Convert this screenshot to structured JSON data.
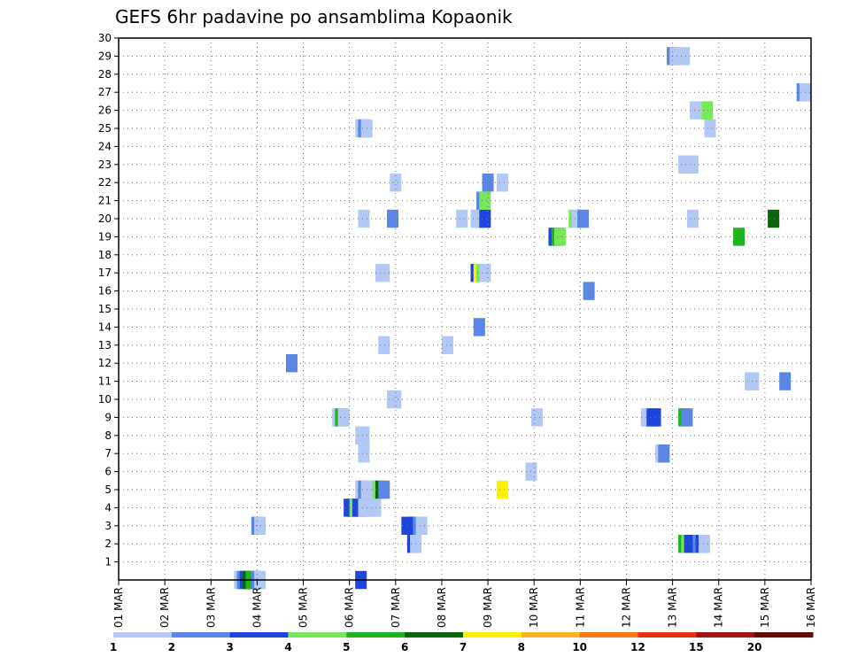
{
  "chart_data": {
    "type": "heatmap",
    "title": "GEFS 6hr padavine po ansamblima Kopaonik",
    "xlabel": "",
    "ylabel": "",
    "x_tick_labels": [
      "01 MAR",
      "02 MAR",
      "03 MAR",
      "04 MAR",
      "05 MAR",
      "06 MAR",
      "07 MAR",
      "08 MAR",
      "09 MAR",
      "10 MAR",
      "11 MAR",
      "12 MAR",
      "13 MAR",
      "14 MAR",
      "15 MAR",
      "16 MAR"
    ],
    "y_tick_labels": [
      "1",
      "2",
      "3",
      "4",
      "5",
      "6",
      "7",
      "8",
      "9",
      "10",
      "11",
      "12",
      "13",
      "14",
      "15",
      "16",
      "17",
      "18",
      "19",
      "20",
      "21",
      "22",
      "23",
      "24",
      "25",
      "26",
      "27",
      "28",
      "29",
      "30"
    ],
    "xlim_days": [
      1,
      16
    ],
    "ylim_members": [
      0,
      30
    ],
    "step_hours": 6,
    "grid": true,
    "colorbar": {
      "levels": [
        1,
        2,
        3,
        4,
        5,
        6,
        7,
        8,
        10,
        12,
        15,
        20
      ],
      "colors": [
        "#b4c8f5",
        "#5a87e6",
        "#1e46dc",
        "#78e65a",
        "#1eb41e",
        "#0a640a",
        "#fff000",
        "#ffb428",
        "#fa7814",
        "#e63214",
        "#a01414",
        "#640a0a"
      ]
    },
    "cells": [
      [
        0,
        10.5,
        1
      ],
      [
        0,
        10.75,
        2
      ],
      [
        0,
        11.0,
        3
      ],
      [
        0,
        11.25,
        6
      ],
      [
        0,
        11.5,
        5
      ],
      [
        0,
        11.75,
        5
      ],
      [
        0,
        12.0,
        2
      ],
      [
        0,
        12.25,
        1
      ],
      [
        0,
        21.0,
        3
      ],
      [
        2,
        25.5,
        3
      ],
      [
        2,
        25.75,
        1
      ],
      [
        2,
        49.0,
        5
      ],
      [
        2,
        49.25,
        4
      ],
      [
        2,
        49.5,
        3
      ],
      [
        2,
        50.25,
        2
      ],
      [
        2,
        50.5,
        3
      ],
      [
        2,
        50.75,
        1
      ],
      [
        3,
        25.0,
        3
      ],
      [
        3,
        25.5,
        3
      ],
      [
        3,
        26.0,
        2
      ],
      [
        3,
        26.25,
        1
      ],
      [
        3,
        12.0,
        2
      ],
      [
        3,
        12.25,
        1
      ],
      [
        4,
        20.0,
        3
      ],
      [
        4,
        20.25,
        3
      ],
      [
        4,
        20.5,
        4
      ],
      [
        4,
        20.75,
        3
      ],
      [
        4,
        21.0,
        3
      ],
      [
        4,
        21.25,
        1
      ],
      [
        4,
        21.5,
        1
      ],
      [
        4,
        21.75,
        1
      ],
      [
        4,
        22.0,
        1
      ],
      [
        4,
        22.25,
        1
      ],
      [
        5,
        21.75,
        1
      ],
      [
        5,
        21.0,
        1
      ],
      [
        5,
        21.25,
        2
      ],
      [
        5,
        21.5,
        1
      ],
      [
        5,
        22.0,
        1
      ],
      [
        5,
        22.25,
        1
      ],
      [
        5,
        22.5,
        4
      ],
      [
        5,
        22.75,
        6
      ],
      [
        5,
        23.0,
        2
      ],
      [
        5,
        33.25,
        7
      ],
      [
        6,
        35.75,
        1
      ],
      [
        7,
        21.25,
        1
      ],
      [
        7,
        47.0,
        1
      ],
      [
        7,
        47.25,
        2
      ],
      [
        8,
        21.0,
        1
      ],
      [
        8,
        21.25,
        1
      ],
      [
        9,
        19.0,
        1
      ],
      [
        9,
        19.25,
        5
      ],
      [
        9,
        19.5,
        1
      ],
      [
        9,
        36.25,
        1
      ],
      [
        9,
        45.75,
        1
      ],
      [
        9,
        46.0,
        1
      ],
      [
        9,
        46.25,
        3
      ],
      [
        9,
        46.5,
        3
      ],
      [
        9,
        49.0,
        5
      ],
      [
        9,
        49.25,
        2
      ],
      [
        10,
        23.75,
        1
      ],
      [
        10,
        24.0,
        1
      ],
      [
        11,
        54.75,
        1
      ],
      [
        11,
        55.0,
        1
      ],
      [
        11,
        57.75,
        2
      ],
      [
        12,
        15.0,
        2
      ],
      [
        13,
        23.0,
        1
      ],
      [
        13,
        28.5,
        1
      ],
      [
        14,
        31.25,
        2
      ],
      [
        16,
        40.75,
        2
      ],
      [
        17,
        22.75,
        1
      ],
      [
        17,
        23.0,
        1
      ],
      [
        17,
        31.0,
        3
      ],
      [
        17,
        31.25,
        7
      ],
      [
        17,
        31.5,
        4
      ],
      [
        17,
        31.75,
        1
      ],
      [
        19,
        37.75,
        3
      ],
      [
        19,
        38.0,
        5
      ],
      [
        19,
        38.25,
        4
      ],
      [
        19,
        53.75,
        5
      ],
      [
        20,
        21.25,
        1
      ],
      [
        20,
        23.75,
        2
      ],
      [
        20,
        29.75,
        1
      ],
      [
        20,
        31.0,
        1
      ],
      [
        20,
        31.25,
        1
      ],
      [
        20,
        31.5,
        1
      ],
      [
        20,
        31.75,
        3
      ],
      [
        20,
        39.5,
        4
      ],
      [
        20,
        39.75,
        1
      ],
      [
        20,
        40.0,
        1
      ],
      [
        20,
        40.25,
        2
      ],
      [
        20,
        49.75,
        1
      ],
      [
        20,
        56.75,
        6
      ],
      [
        21,
        31.5,
        2
      ],
      [
        21,
        31.75,
        4
      ],
      [
        22,
        24.0,
        1
      ],
      [
        22,
        32.0,
        2
      ],
      [
        22,
        33.25,
        1
      ],
      [
        23,
        49.0,
        1
      ],
      [
        23,
        49.25,
        1
      ],
      [
        23,
        49.5,
        1
      ],
      [
        23,
        49.75,
        1
      ],
      [
        25,
        21.0,
        1
      ],
      [
        25,
        21.25,
        2
      ],
      [
        25,
        21.5,
        1
      ],
      [
        25,
        51.25,
        1
      ],
      [
        26,
        50.0,
        1
      ],
      [
        26,
        51.0,
        4
      ],
      [
        27,
        59.25,
        2
      ],
      [
        27,
        59.5,
        1
      ],
      [
        29,
        48.0,
        2
      ],
      [
        29,
        48.25,
        1
      ],
      [
        29,
        49.0,
        1
      ]
    ]
  }
}
